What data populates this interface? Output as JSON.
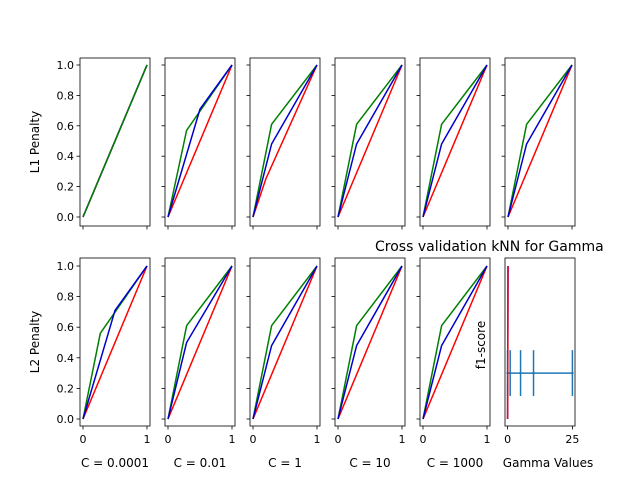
{
  "figure": {
    "row_labels": [
      "L1 Penalty",
      "L2 Penalty"
    ],
    "column_labels": [
      "C = 0.0001",
      "C = 0.01",
      "C = 1",
      "C = 10",
      "C = 1000"
    ]
  },
  "axes": {
    "y_ticks": [
      "0.0",
      "0.2",
      "0.4",
      "0.6",
      "0.8",
      "1.0"
    ],
    "x_ticks": [
      "0",
      "1"
    ]
  },
  "colors": {
    "red": "#ff0000",
    "blue": "#0000cd",
    "green": "#008000",
    "errorbar": "#1f77b4"
  },
  "chart_data": [
    {
      "type": "line",
      "ylabel": "L1 Penalty",
      "xlabel": "",
      "xlim": [
        0,
        1
      ],
      "ylim": [
        0,
        1
      ],
      "grid": false,
      "series": [
        {
          "color": "red",
          "x": [
            0,
            1
          ],
          "y": [
            0,
            1
          ]
        },
        {
          "color": "blue",
          "x": [
            0,
            1
          ],
          "y": [
            0,
            1
          ]
        },
        {
          "color": "green",
          "x": [
            0,
            1
          ],
          "y": [
            0,
            1
          ]
        }
      ]
    },
    {
      "type": "line",
      "ylabel": "",
      "xlabel": "",
      "xlim": [
        0,
        1
      ],
      "ylim": [
        0,
        1
      ],
      "grid": false,
      "series": [
        {
          "color": "red",
          "x": [
            0,
            1
          ],
          "y": [
            0,
            1
          ]
        },
        {
          "color": "green",
          "x": [
            0,
            0.29,
            1
          ],
          "y": [
            0,
            0.57,
            1
          ]
        },
        {
          "color": "blue",
          "x": [
            0,
            0.5,
            1
          ],
          "y": [
            0,
            0.71,
            1
          ]
        }
      ]
    },
    {
      "type": "line",
      "ylabel": "",
      "xlabel": "",
      "xlim": [
        0,
        1
      ],
      "ylim": [
        0,
        1
      ],
      "grid": false,
      "series": [
        {
          "color": "red",
          "x": [
            0,
            0.2,
            1
          ],
          "y": [
            0,
            0.25,
            1
          ]
        },
        {
          "color": "green",
          "x": [
            0,
            0.29,
            1
          ],
          "y": [
            0,
            0.61,
            1
          ]
        },
        {
          "color": "blue",
          "x": [
            0,
            0.29,
            1
          ],
          "y": [
            0,
            0.48,
            1
          ]
        }
      ]
    },
    {
      "type": "line",
      "ylabel": "",
      "xlabel": "",
      "xlim": [
        0,
        1
      ],
      "ylim": [
        0,
        1
      ],
      "grid": false,
      "series": [
        {
          "color": "red",
          "x": [
            0,
            1
          ],
          "y": [
            0,
            1
          ]
        },
        {
          "color": "green",
          "x": [
            0,
            0.29,
            1
          ],
          "y": [
            0,
            0.61,
            1
          ]
        },
        {
          "color": "blue",
          "x": [
            0,
            0.29,
            1
          ],
          "y": [
            0,
            0.48,
            1
          ]
        }
      ]
    },
    {
      "type": "line",
      "ylabel": "",
      "xlabel": "",
      "xlim": [
        0,
        1
      ],
      "ylim": [
        0,
        1
      ],
      "grid": false,
      "series": [
        {
          "color": "red",
          "x": [
            0,
            1
          ],
          "y": [
            0,
            1
          ]
        },
        {
          "color": "green",
          "x": [
            0,
            0.29,
            1
          ],
          "y": [
            0,
            0.61,
            1
          ]
        },
        {
          "color": "blue",
          "x": [
            0,
            0.29,
            1
          ],
          "y": [
            0,
            0.48,
            1
          ]
        }
      ]
    },
    {
      "type": "line",
      "ylabel": "",
      "xlabel": "",
      "xlim": [
        0,
        1
      ],
      "ylim": [
        0,
        1
      ],
      "grid": false,
      "series": [
        {
          "color": "red",
          "x": [
            0,
            1
          ],
          "y": [
            0,
            1
          ]
        },
        {
          "color": "green",
          "x": [
            0,
            0.29,
            1
          ],
          "y": [
            0,
            0.61,
            1
          ]
        },
        {
          "color": "blue",
          "x": [
            0,
            0.29,
            1
          ],
          "y": [
            0,
            0.48,
            1
          ]
        }
      ]
    },
    {
      "type": "line",
      "ylabel": "L2 Penalty",
      "xlabel": "C = 0.0001",
      "xlim": [
        0,
        1
      ],
      "ylim": [
        0,
        1
      ],
      "grid": false,
      "series": [
        {
          "color": "red",
          "x": [
            0,
            1
          ],
          "y": [
            0,
            1
          ]
        },
        {
          "color": "green",
          "x": [
            0,
            0.27,
            1
          ],
          "y": [
            0,
            0.56,
            1
          ]
        },
        {
          "color": "blue",
          "x": [
            0,
            0.5,
            1
          ],
          "y": [
            0,
            0.71,
            1
          ]
        }
      ]
    },
    {
      "type": "line",
      "ylabel": "",
      "xlabel": "C = 0.01",
      "xlim": [
        0,
        1
      ],
      "ylim": [
        0,
        1
      ],
      "grid": false,
      "series": [
        {
          "color": "red",
          "x": [
            0,
            1
          ],
          "y": [
            0,
            1
          ]
        },
        {
          "color": "green",
          "x": [
            0,
            0.29,
            1
          ],
          "y": [
            0,
            0.61,
            1
          ]
        },
        {
          "color": "blue",
          "x": [
            0,
            0.29,
            1
          ],
          "y": [
            0,
            0.5,
            1
          ]
        }
      ]
    },
    {
      "type": "line",
      "ylabel": "",
      "xlabel": "C = 1",
      "xlim": [
        0,
        1
      ],
      "ylim": [
        0,
        1
      ],
      "grid": false,
      "series": [
        {
          "color": "red",
          "x": [
            0,
            1
          ],
          "y": [
            0,
            1
          ]
        },
        {
          "color": "green",
          "x": [
            0,
            0.29,
            1
          ],
          "y": [
            0,
            0.61,
            1
          ]
        },
        {
          "color": "blue",
          "x": [
            0,
            0.29,
            1
          ],
          "y": [
            0,
            0.48,
            1
          ]
        }
      ]
    },
    {
      "type": "line",
      "ylabel": "",
      "xlabel": "C = 10",
      "xlim": [
        0,
        1
      ],
      "ylim": [
        0,
        1
      ],
      "grid": false,
      "series": [
        {
          "color": "red",
          "x": [
            0,
            1
          ],
          "y": [
            0,
            1
          ]
        },
        {
          "color": "green",
          "x": [
            0,
            0.29,
            1
          ],
          "y": [
            0,
            0.61,
            1
          ]
        },
        {
          "color": "blue",
          "x": [
            0,
            0.29,
            1
          ],
          "y": [
            0,
            0.48,
            1
          ]
        }
      ]
    },
    {
      "type": "line",
      "ylabel": "",
      "xlabel": "C = 1000",
      "xlim": [
        0,
        1
      ],
      "ylim": [
        0,
        1
      ],
      "grid": false,
      "series": [
        {
          "color": "red",
          "x": [
            0,
            1
          ],
          "y": [
            0,
            1
          ]
        },
        {
          "color": "green",
          "x": [
            0,
            0.29,
            1
          ],
          "y": [
            0,
            0.61,
            1
          ]
        },
        {
          "color": "blue",
          "x": [
            0,
            0.29,
            1
          ],
          "y": [
            0,
            0.48,
            1
          ]
        }
      ]
    },
    {
      "type": "errorbar",
      "title": "Cross validation kNN for Gamma",
      "ylabel": "f1-score",
      "xlabel": "Gamma Values",
      "xlim": [
        -1,
        26
      ],
      "x_ticks": [
        "0",
        "25"
      ],
      "grid": false,
      "series": [
        {
          "color": "errorbar",
          "x": [
            0,
            1,
            5,
            10,
            25
          ],
          "y": [
            0.3,
            0.3,
            0.3,
            0.3,
            0.3
          ],
          "yerr": [
            0.15,
            0.15,
            0.15,
            0.15,
            0.15
          ]
        },
        {
          "color": "blue",
          "x": [
            0,
            0.2
          ],
          "y": [
            0,
            1
          ]
        },
        {
          "color": "red",
          "x": [
            0,
            0.1
          ],
          "y": [
            0,
            1
          ]
        }
      ]
    }
  ]
}
